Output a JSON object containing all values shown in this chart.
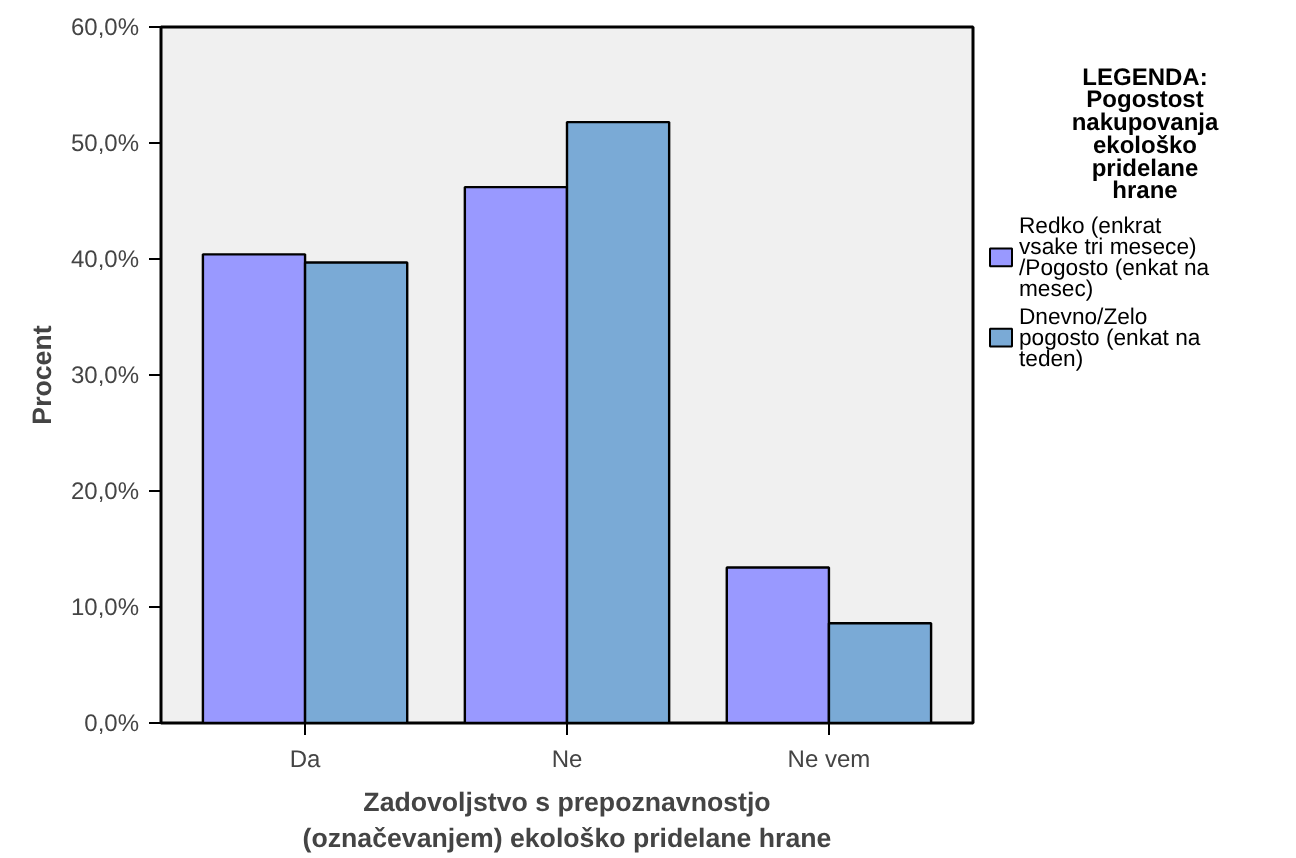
{
  "chart_data": {
    "type": "bar",
    "xlabel": "Zadovoljstvo s prepoznavnostjo (označevanjem) ekološko pridelane hrane",
    "ylabel": "Procent",
    "legend_title": "LEGENDA: Pogostost nakupovanja ekološko pridelane hrane",
    "categories": [
      "Da",
      "Ne",
      "Ne vem"
    ],
    "series": [
      {
        "name": "Redko (enkrat vsake tri mesece) /Pogosto (enkat na mesec)",
        "color": "#9999ff",
        "values": [
          40.4,
          46.2,
          13.4
        ]
      },
      {
        "name": "Dnevno/Zelo pogosto (enkat na teden)",
        "color": "#7aaad6",
        "values": [
          39.7,
          51.8,
          8.6
        ]
      }
    ],
    "ylim": [
      0,
      60
    ],
    "yticks": [
      {
        "value": 0,
        "label": "0,0%"
      },
      {
        "value": 10,
        "label": "10,0%"
      },
      {
        "value": 20,
        "label": "20,0%"
      },
      {
        "value": 30,
        "label": "30,0%"
      },
      {
        "value": 40,
        "label": "40,0%"
      },
      {
        "value": 50,
        "label": "50,0%"
      },
      {
        "value": 60,
        "label": "60,0%"
      }
    ],
    "grid": false,
    "legend": "right"
  }
}
